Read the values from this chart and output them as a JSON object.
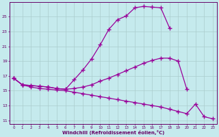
{
  "xlabel": "Windchill (Refroidissement éolien,°C)",
  "bg_color": "#c5eaed",
  "line_color": "#990099",
  "grid_color": "#aacccc",
  "xlim_min": -0.5,
  "xlim_max": 23.5,
  "ylim_min": 10.5,
  "ylim_max": 27.0,
  "yticks": [
    11,
    13,
    15,
    17,
    19,
    21,
    23,
    25
  ],
  "xticks": [
    0,
    1,
    2,
    3,
    4,
    5,
    6,
    7,
    8,
    9,
    10,
    11,
    12,
    13,
    14,
    15,
    16,
    17,
    18,
    19,
    20,
    21,
    22,
    23
  ],
  "line1_x": [
    0,
    1,
    2,
    3,
    4,
    5,
    6,
    7,
    8,
    9,
    10,
    11,
    12,
    13,
    14,
    15,
    16,
    17,
    18
  ],
  "line1_y": [
    16.7,
    15.8,
    15.7,
    15.6,
    15.5,
    15.3,
    15.2,
    16.5,
    17.8,
    19.3,
    21.2,
    23.3,
    24.6,
    25.1,
    26.2,
    26.4,
    26.3,
    26.2,
    23.5
  ],
  "line2_x": [
    0,
    1,
    2,
    3,
    4,
    5,
    6,
    7,
    8,
    9,
    10,
    11,
    12,
    13,
    14,
    15,
    16,
    17,
    18,
    19,
    20
  ],
  "line2_y": [
    16.7,
    15.8,
    15.7,
    15.6,
    15.5,
    15.3,
    15.2,
    15.3,
    15.5,
    15.8,
    16.3,
    16.7,
    17.2,
    17.7,
    18.2,
    18.7,
    19.1,
    19.4,
    19.4,
    19.0,
    15.2
  ],
  "line3_x": [
    0,
    1,
    2,
    3,
    4,
    5,
    6,
    7,
    8,
    9,
    10,
    11,
    12,
    13,
    14,
    15,
    16,
    17,
    18,
    19,
    20,
    21,
    22,
    23
  ],
  "line3_y": [
    16.7,
    15.8,
    15.5,
    15.3,
    15.2,
    15.1,
    15.0,
    14.8,
    14.6,
    14.4,
    14.2,
    14.0,
    13.8,
    13.6,
    13.4,
    13.2,
    13.0,
    12.8,
    12.5,
    12.2,
    11.9,
    13.2,
    11.5,
    11.2
  ]
}
